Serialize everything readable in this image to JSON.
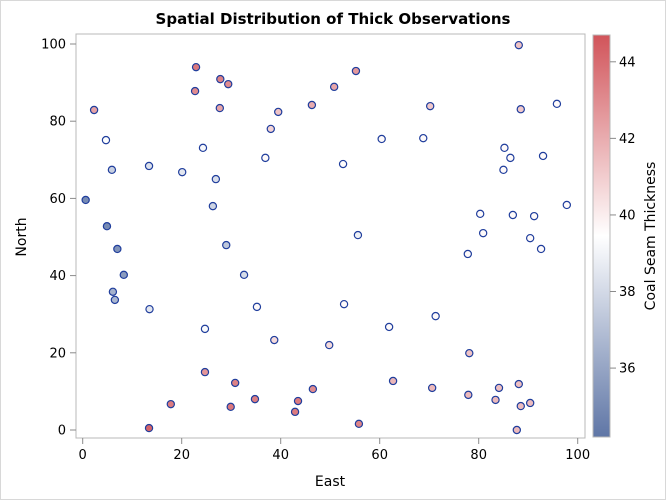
{
  "chart_data": {
    "type": "scatter",
    "title": "Spatial Distribution of Thick Observations",
    "xlabel": "East",
    "ylabel": "North",
    "xlim": [
      -1.5,
      101.6
    ],
    "ylim": [
      -2.0,
      102.5
    ],
    "xticks": [
      0,
      20,
      40,
      60,
      80,
      100
    ],
    "yticks": [
      0,
      20,
      40,
      60,
      80,
      100
    ],
    "grid": false,
    "colorbar": {
      "label": "Coal Seam Thickness",
      "range": [
        34.2,
        44.7
      ],
      "ticks": [
        36,
        38,
        40,
        42,
        44
      ],
      "colors": {
        "low": "#5f76a6",
        "mid": "#ffffff",
        "high": "#d1545a"
      }
    },
    "marker": {
      "edge_color": "#1f3d9c",
      "size": 7
    },
    "points": [
      {
        "east": 0.6,
        "north": 59.6,
        "thick": 35.0
      },
      {
        "east": 2.3,
        "north": 82.9,
        "thick": 42.3
      },
      {
        "east": 4.7,
        "north": 75.1,
        "thick": 39.4
      },
      {
        "east": 4.9,
        "north": 52.8,
        "thick": 35.0
      },
      {
        "east": 5.9,
        "north": 67.4,
        "thick": 37.6
      },
      {
        "east": 7.0,
        "north": 46.9,
        "thick": 35.3
      },
      {
        "east": 8.3,
        "north": 40.2,
        "thick": 35.6
      },
      {
        "east": 6.1,
        "north": 35.8,
        "thick": 36.5
      },
      {
        "east": 6.5,
        "north": 33.7,
        "thick": 36.7
      },
      {
        "east": 13.4,
        "north": 68.4,
        "thick": 38.3
      },
      {
        "east": 13.5,
        "north": 31.3,
        "thick": 38.5
      },
      {
        "east": 13.4,
        "north": 0.5,
        "thick": 44.2
      },
      {
        "east": 17.8,
        "north": 6.7,
        "thick": 43.5
      },
      {
        "east": 20.1,
        "north": 66.8,
        "thick": 38.5
      },
      {
        "east": 22.9,
        "north": 94.0,
        "thick": 43.6
      },
      {
        "east": 22.7,
        "north": 87.8,
        "thick": 43.0
      },
      {
        "east": 24.3,
        "north": 73.1,
        "thick": 39.2
      },
      {
        "east": 24.7,
        "north": 26.2,
        "thick": 39.3
      },
      {
        "east": 24.7,
        "north": 15.0,
        "thick": 42.7
      },
      {
        "east": 26.3,
        "north": 58.0,
        "thick": 37.8
      },
      {
        "east": 26.9,
        "north": 65.0,
        "thick": 38.2
      },
      {
        "east": 27.7,
        "north": 83.4,
        "thick": 42.2
      },
      {
        "east": 27.8,
        "north": 90.9,
        "thick": 43.3
      },
      {
        "east": 29.4,
        "north": 89.6,
        "thick": 43.0
      },
      {
        "east": 29.0,
        "north": 47.9,
        "thick": 37.3
      },
      {
        "east": 29.9,
        "north": 6.0,
        "thick": 43.6
      },
      {
        "east": 30.8,
        "north": 12.2,
        "thick": 43.3
      },
      {
        "east": 32.6,
        "north": 40.2,
        "thick": 38.1
      },
      {
        "east": 35.2,
        "north": 31.9,
        "thick": 39.6
      },
      {
        "east": 34.8,
        "north": 8.0,
        "thick": 43.4
      },
      {
        "east": 36.9,
        "north": 70.5,
        "thick": 39.6
      },
      {
        "east": 38.0,
        "north": 78.0,
        "thick": 40.8
      },
      {
        "east": 39.5,
        "north": 82.4,
        "thick": 41.3
      },
      {
        "east": 38.7,
        "north": 23.3,
        "thick": 40.6
      },
      {
        "east": 42.9,
        "north": 4.7,
        "thick": 43.5
      },
      {
        "east": 43.5,
        "north": 7.5,
        "thick": 43.5
      },
      {
        "east": 46.3,
        "north": 84.2,
        "thick": 42.0
      },
      {
        "east": 46.5,
        "north": 10.6,
        "thick": 43.0
      },
      {
        "east": 49.8,
        "north": 22.0,
        "thick": 40.6
      },
      {
        "east": 50.8,
        "north": 88.9,
        "thick": 42.2
      },
      {
        "east": 52.6,
        "north": 68.9,
        "thick": 39.5
      },
      {
        "east": 52.8,
        "north": 32.6,
        "thick": 39.6
      },
      {
        "east": 55.2,
        "north": 93.0,
        "thick": 42.6
      },
      {
        "east": 55.6,
        "north": 50.5,
        "thick": 38.9
      },
      {
        "east": 55.8,
        "north": 1.6,
        "thick": 43.2
      },
      {
        "east": 60.4,
        "north": 75.4,
        "thick": 39.6
      },
      {
        "east": 61.9,
        "north": 26.7,
        "thick": 39.6
      },
      {
        "east": 62.7,
        "north": 12.7,
        "thick": 41.7
      },
      {
        "east": 68.8,
        "north": 75.6,
        "thick": 39.6
      },
      {
        "east": 70.2,
        "north": 83.9,
        "thick": 41.1
      },
      {
        "east": 70.6,
        "north": 10.9,
        "thick": 41.6
      },
      {
        "east": 71.3,
        "north": 29.5,
        "thick": 39.6
      },
      {
        "east": 77.8,
        "north": 45.6,
        "thick": 39.6
      },
      {
        "east": 77.9,
        "north": 9.1,
        "thick": 41.6
      },
      {
        "east": 78.1,
        "north": 19.9,
        "thick": 41.3
      },
      {
        "east": 80.3,
        "north": 56.0,
        "thick": 39.6
      },
      {
        "east": 80.9,
        "north": 51.0,
        "thick": 39.6
      },
      {
        "east": 83.4,
        "north": 7.8,
        "thick": 41.6
      },
      {
        "east": 84.1,
        "north": 10.9,
        "thick": 41.4
      },
      {
        "east": 85.0,
        "north": 67.4,
        "thick": 39.6
      },
      {
        "east": 85.2,
        "north": 73.1,
        "thick": 39.6
      },
      {
        "east": 86.4,
        "north": 70.5,
        "thick": 39.6
      },
      {
        "east": 86.9,
        "north": 55.7,
        "thick": 39.6
      },
      {
        "east": 87.7,
        "north": 0.0,
        "thick": 41.6
      },
      {
        "east": 88.1,
        "north": 99.7,
        "thick": 41.3
      },
      {
        "east": 88.1,
        "north": 11.9,
        "thick": 41.4
      },
      {
        "east": 88.5,
        "north": 83.1,
        "thick": 41.1
      },
      {
        "east": 88.5,
        "north": 6.2,
        "thick": 41.5
      },
      {
        "east": 90.4,
        "north": 49.7,
        "thick": 39.6
      },
      {
        "east": 90.4,
        "north": 7.0,
        "thick": 41.5
      },
      {
        "east": 91.2,
        "north": 55.4,
        "thick": 39.6
      },
      {
        "east": 92.6,
        "north": 46.9,
        "thick": 39.6
      },
      {
        "east": 93.0,
        "north": 71.0,
        "thick": 39.6
      },
      {
        "east": 95.8,
        "north": 84.5,
        "thick": 39.6
      },
      {
        "east": 97.8,
        "north": 58.3,
        "thick": 39.6
      }
    ]
  }
}
